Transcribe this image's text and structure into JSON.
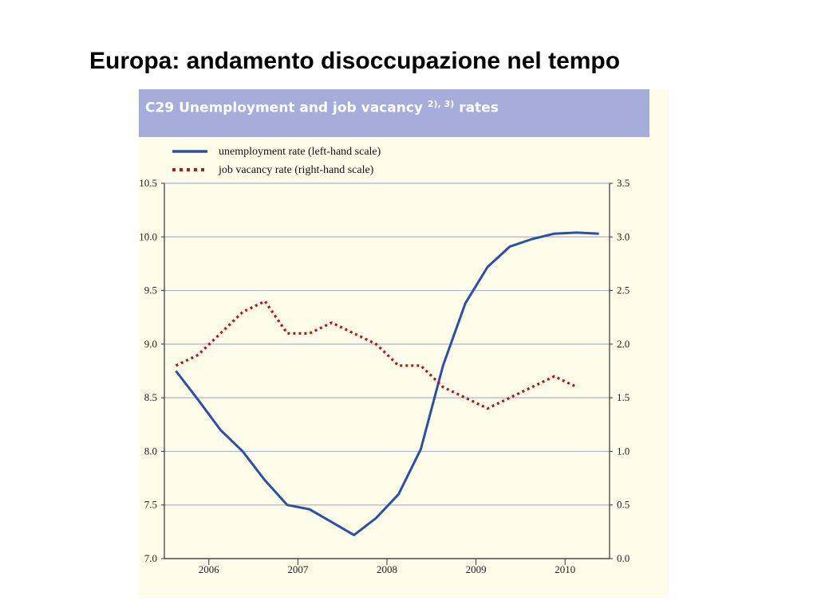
{
  "slide": {
    "title": "Europa: andamento disoccupazione nel tempo"
  },
  "chart_data": {
    "type": "line",
    "chart_id": "C29",
    "title_main": "Unemployment and job vacancy",
    "title_sup": "2), 3)",
    "title_tail": "rates",
    "x_ticks": [
      "2006",
      "2007",
      "2008",
      "2009",
      "2010"
    ],
    "x_range": [
      2005.5,
      2010.5
    ],
    "y_left_range": [
      7.0,
      10.5
    ],
    "y_left_ticks": [
      "10.5",
      "10.0",
      "9.5",
      "9.0",
      "8.5",
      "8.0",
      "7.5",
      "7.0"
    ],
    "y_right_range": [
      0.0,
      3.5
    ],
    "y_right_ticks": [
      "3.5",
      "3.0",
      "2.5",
      "2.0",
      "1.5",
      "1.0",
      "0.5",
      "0.0"
    ],
    "grid": "horizontal",
    "legend_placement": "top-left",
    "series": [
      {
        "name": "unemployment rate (left-hand scale)",
        "axis": "left",
        "style": "solid",
        "color": "#2b4fad",
        "x": [
          2005.63,
          2005.88,
          2006.13,
          2006.38,
          2006.63,
          2006.88,
          2007.13,
          2007.38,
          2007.63,
          2007.88,
          2008.13,
          2008.38,
          2008.63,
          2008.88,
          2009.13,
          2009.38,
          2009.63,
          2009.88,
          2010.13,
          2010.38
        ],
        "values": [
          8.75,
          8.48,
          8.2,
          8.0,
          7.73,
          7.5,
          7.46,
          7.34,
          7.22,
          7.38,
          7.6,
          8.02,
          8.8,
          9.38,
          9.72,
          9.91,
          9.98,
          10.03,
          10.04,
          10.03
        ]
      },
      {
        "name": "job vacancy rate (right-hand scale)",
        "axis": "right",
        "style": "dotted",
        "color": "#c0111b",
        "x": [
          2005.63,
          2005.88,
          2006.13,
          2006.38,
          2006.63,
          2006.88,
          2007.13,
          2007.38,
          2007.63,
          2007.88,
          2008.13,
          2008.38,
          2008.63,
          2008.88,
          2009.13,
          2009.38,
          2009.63,
          2009.88,
          2010.13
        ],
        "values": [
          1.8,
          1.9,
          2.1,
          2.3,
          2.4,
          2.1,
          2.1,
          2.2,
          2.1,
          2.0,
          1.8,
          1.8,
          1.6,
          1.5,
          1.4,
          1.5,
          1.6,
          1.7,
          1.6
        ]
      }
    ]
  }
}
